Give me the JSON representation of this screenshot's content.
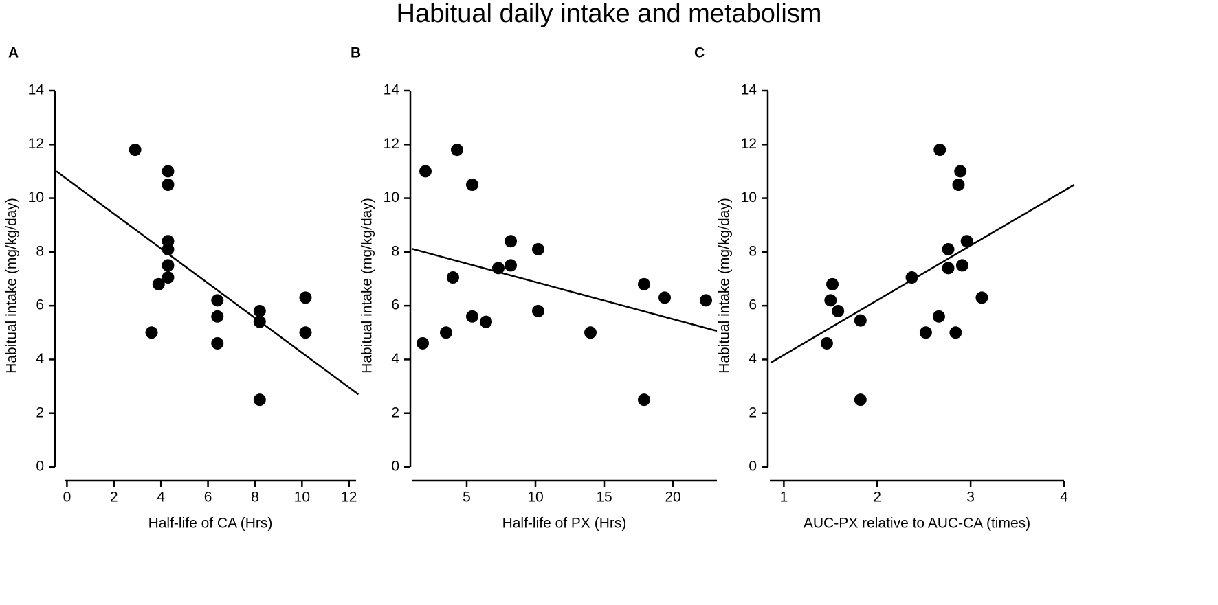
{
  "title": "Habitual daily intake and metabolism",
  "chart_data": [
    {
      "type": "scatter",
      "panel": "A",
      "x_label": "Half-life of CA (Hrs)",
      "y_label": "Habitual intake (mg/kg/day)",
      "color": "#000000",
      "x": [
        2.9,
        4.3,
        4.3,
        4.3,
        4.3,
        4.3,
        4.3,
        3.9,
        3.6,
        6.4,
        6.4,
        6.4,
        8.2,
        8.2,
        8.2,
        10.15,
        10.15
      ],
      "y": [
        11.8,
        11.0,
        10.5,
        8.4,
        8.1,
        7.5,
        7.05,
        6.8,
        5.0,
        6.2,
        5.6,
        4.6,
        5.8,
        5.4,
        2.5,
        6.3,
        5.0
      ],
      "trendline": {
        "x": [
          -0.45,
          12.4
        ],
        "y": [
          11.0,
          2.7
        ]
      },
      "xlim": [
        -0.1,
        12.3
      ],
      "xticks": [
        0,
        2,
        4,
        6,
        8,
        10,
        12
      ],
      "ylim": [
        0,
        14
      ],
      "yticks": [
        0,
        2,
        4,
        6,
        8,
        10,
        12,
        14
      ]
    },
    {
      "type": "scatter",
      "panel": "B",
      "x_label": "Half-life of PX (Hrs)",
      "y_label": "Habitual intake (mg/kg/day)",
      "color": "#000000",
      "x": [
        2.0,
        1.8,
        3.5,
        4.0,
        4.3,
        5.4,
        5.4,
        6.4,
        7.3,
        8.2,
        8.2,
        10.2,
        10.2,
        14.0,
        17.9,
        17.9,
        19.4,
        22.4
      ],
      "y": [
        11.0,
        4.6,
        5.0,
        7.05,
        11.8,
        10.5,
        5.6,
        5.4,
        7.4,
        8.4,
        7.5,
        8.1,
        5.8,
        5.0,
        6.8,
        2.5,
        6.3,
        6.2
      ],
      "trendline": {
        "x": [
          1.0,
          23.2
        ],
        "y": [
          8.12,
          5.06
        ]
      },
      "xlim": [
        1.0,
        23.2
      ],
      "xticks": [
        5,
        10,
        15,
        20
      ],
      "ylim": [
        0,
        14
      ],
      "yticks": [
        0,
        2,
        4,
        6,
        8,
        10,
        12,
        14
      ]
    },
    {
      "type": "scatter",
      "panel": "C",
      "x_label": "AUC-PX relative to AUC-CA (times)",
      "y_label": "Habitual intake (mg/kg/day)",
      "color": "#000000",
      "x": [
        2.67,
        2.89,
        2.87,
        2.96,
        2.76,
        2.76,
        2.91,
        2.37,
        1.52,
        1.5,
        1.58,
        1.82,
        1.82,
        1.46,
        2.52,
        2.84,
        2.66,
        3.12
      ],
      "y": [
        11.8,
        11.0,
        10.5,
        8.4,
        8.1,
        7.4,
        7.5,
        7.05,
        6.8,
        6.2,
        5.8,
        5.45,
        2.5,
        4.6,
        5.0,
        5.0,
        5.6,
        6.3
      ],
      "trendline": {
        "x": [
          0.86,
          4.11
        ],
        "y": [
          3.88,
          10.5
        ]
      },
      "xlim": [
        0.85,
        4.0
      ],
      "xticks": [
        1,
        2,
        3,
        4
      ],
      "ylim": [
        0,
        14
      ],
      "yticks": [
        0,
        2,
        4,
        6,
        8,
        10,
        12,
        14
      ]
    }
  ]
}
